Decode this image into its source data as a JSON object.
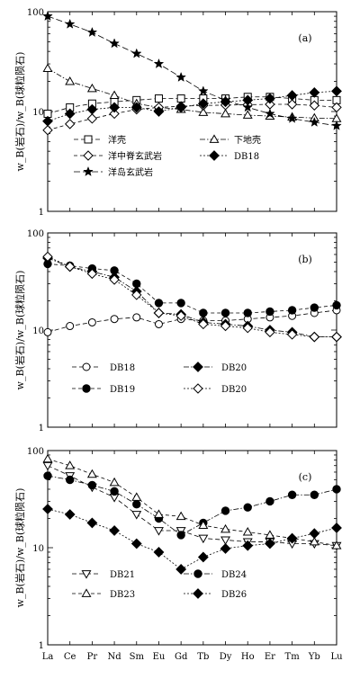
{
  "chart_data": [
    {
      "type": "line",
      "panel_label": "(a)",
      "y_scale": "log",
      "ylim": [
        1,
        100
      ],
      "ytick_labels": [
        "1",
        "10",
        "100"
      ],
      "ylabel": "w_B(岩石)/w_B(球粒陨石)",
      "categories": [
        "La",
        "Ce",
        "Pr",
        "Nd",
        "Sm",
        "Eu",
        "Gd",
        "Tb",
        "Dy",
        "Ho",
        "Er",
        "Tm",
        "Yb",
        "Lu"
      ],
      "show_category_labels": false,
      "series": [
        {
          "name": "洋壳",
          "marker": "square-open",
          "values": [
            9.5,
            11,
            12,
            12.5,
            13,
            13.5,
            13.5,
            13.5,
            13.5,
            14,
            14,
            13.5,
            13,
            13
          ]
        },
        {
          "name": "下地壳",
          "marker": "triangle-open",
          "values": [
            27,
            20,
            17,
            14.5,
            12,
            11,
            10.5,
            9.8,
            9.5,
            9.2,
            9,
            8.8,
            8.6,
            8.5
          ]
        },
        {
          "name": "洋中脊玄武岩",
          "marker": "diamond-open",
          "values": [
            6.5,
            7.5,
            8.5,
            9.5,
            10.5,
            11,
            11.3,
            11.5,
            11.6,
            11.7,
            11.8,
            11.8,
            11.5,
            11
          ]
        },
        {
          "name": "DB18",
          "marker": "diamond-filled",
          "values": [
            8,
            9.5,
            10.5,
            11,
            11,
            10,
            11,
            12,
            12.5,
            13,
            13.5,
            14.5,
            15.5,
            16
          ]
        },
        {
          "name": "洋岛玄武岩",
          "marker": "star",
          "values": [
            90,
            75,
            62,
            48,
            38,
            30,
            22,
            16,
            13,
            11,
            9.5,
            8.5,
            7.8,
            7.2
          ]
        }
      ],
      "legend": {
        "placement": "lower-center",
        "columns": 2,
        "order": [
          "洋壳",
          "下地壳",
          "洋中脊玄武岩",
          "DB18",
          "洋岛玄武岩"
        ]
      }
    },
    {
      "type": "line",
      "panel_label": "(b)",
      "y_scale": "log",
      "ylim": [
        1,
        100
      ],
      "ytick_labels": [
        "1",
        "10",
        "100"
      ],
      "ylabel": "w_B(岩石)/w_B(球粒陨石)",
      "categories": [
        "La",
        "Ce",
        "Pr",
        "Nd",
        "Sm",
        "Eu",
        "Gd",
        "Tb",
        "Dy",
        "Ho",
        "Er",
        "Tm",
        "Yb",
        "Lu"
      ],
      "show_category_labels": false,
      "series": [
        {
          "name": "DB18",
          "marker": "circle-open",
          "values": [
            9.5,
            11,
            12,
            13,
            13.5,
            11.5,
            13,
            12.5,
            12.5,
            13,
            13.5,
            14,
            15,
            16
          ]
        },
        {
          "name": "DB20",
          "marker": "diamond-filled",
          "values": [
            55,
            45,
            40,
            35,
            25,
            15,
            14.5,
            12,
            11.5,
            11,
            10,
            9.5,
            8.5,
            8.5
          ]
        },
        {
          "name": "DB19",
          "marker": "circle-filled",
          "values": [
            48,
            46,
            43,
            41,
            30,
            19,
            19,
            15,
            15,
            15,
            15.5,
            16,
            17,
            18
          ]
        },
        {
          "name": "DB20",
          "marker": "diamond-open",
          "values": [
            57,
            45,
            38,
            33,
            23,
            15,
            14,
            11.5,
            11,
            10.5,
            9.5,
            9,
            8.5,
            8.5
          ]
        }
      ],
      "legend": {
        "placement": "lower-center",
        "columns": 2,
        "order": [
          "DB18",
          "DB20",
          "DB19",
          "DB20"
        ]
      }
    },
    {
      "type": "line",
      "panel_label": "(c)",
      "y_scale": "log",
      "ylim": [
        1,
        100
      ],
      "ytick_labels": [
        "1",
        "10",
        "100"
      ],
      "ylabel": "w_B(岩石)/w_B(球粒陨石)",
      "categories": [
        "La",
        "Ce",
        "Pr",
        "Nd",
        "Sm",
        "Eu",
        "Gd",
        "Tb",
        "Dy",
        "Ho",
        "Er",
        "Tm",
        "Yb",
        "Lu"
      ],
      "show_category_labels": true,
      "series": [
        {
          "name": "DB21",
          "marker": "triangle-down-open",
          "values": [
            70,
            55,
            42,
            33,
            22,
            15,
            15,
            12.5,
            12,
            11.5,
            11.5,
            11,
            11,
            10.5
          ]
        },
        {
          "name": "DB24",
          "marker": "circle-filled",
          "values": [
            55,
            50,
            44,
            38,
            28,
            20,
            13.5,
            18,
            24,
            26,
            30,
            35,
            35,
            40
          ]
        },
        {
          "name": "DB23",
          "marker": "triangle-open",
          "values": [
            82,
            70,
            57,
            47,
            33,
            22,
            21,
            17,
            15.5,
            14.5,
            13.5,
            12.5,
            11.5,
            10.5
          ]
        },
        {
          "name": "DB26",
          "marker": "diamond-filled",
          "values": [
            25,
            22,
            18,
            15,
            11,
            9,
            6,
            8,
            9.8,
            10.5,
            11,
            12.5,
            14,
            16
          ]
        }
      ],
      "legend": {
        "placement": "lower-center",
        "columns": 2,
        "order": [
          "DB21",
          "DB24",
          "DB23",
          "DB26"
        ]
      }
    }
  ]
}
